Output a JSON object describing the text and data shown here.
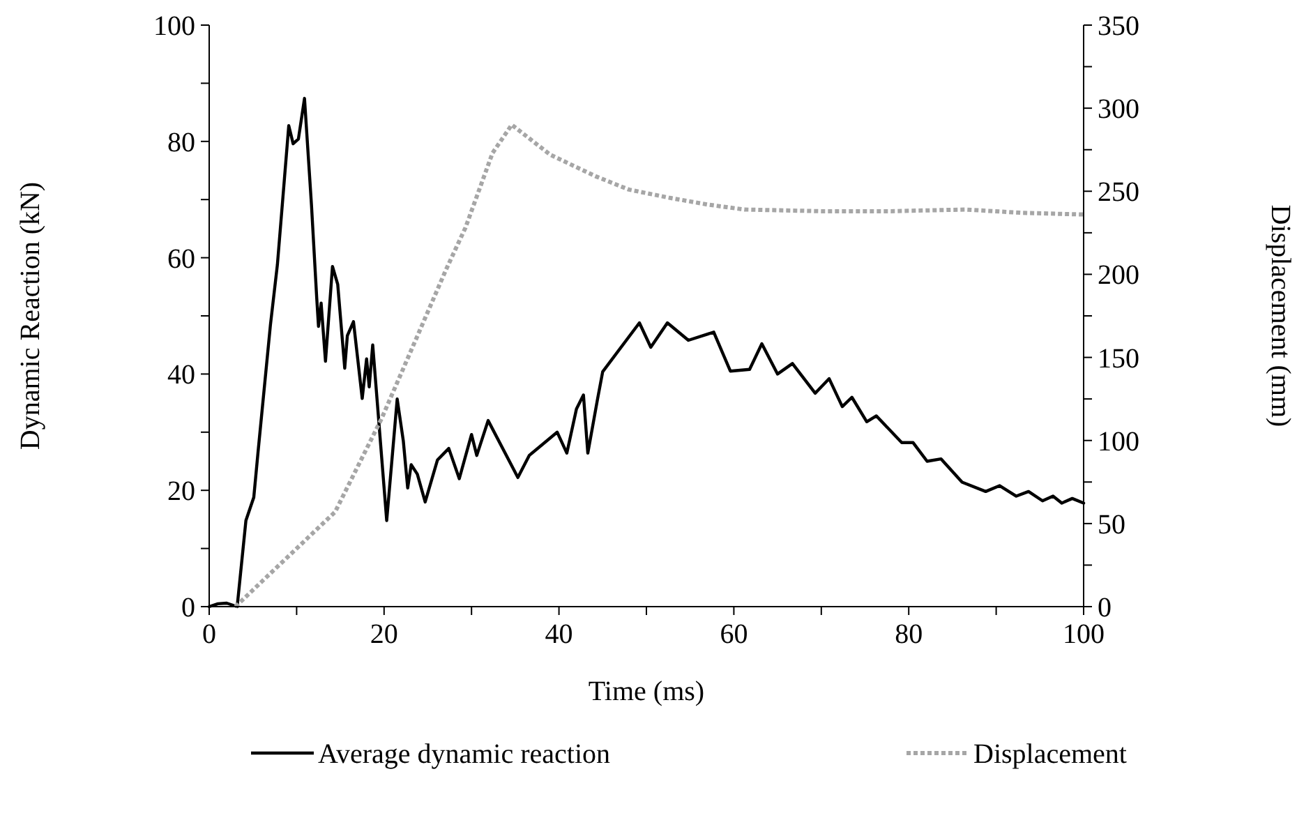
{
  "chart_data": {
    "type": "line",
    "xlabel": "Time (ms)",
    "ylabel": "Dynamic Reaction (kN)",
    "y2label": "Displacement (mm)",
    "xlim": [
      0,
      100
    ],
    "xticks": [
      0,
      {
        "value": 10,
        "label": null
      },
      20,
      {
        "value": 30,
        "label": null
      },
      40,
      {
        "value": 50,
        "label": null
      },
      60,
      {
        "value": 70,
        "label": null
      },
      80,
      {
        "value": 90,
        "label": null
      },
      100
    ],
    "ylim": [
      0,
      100
    ],
    "yticks": [
      0,
      {
        "value": 10,
        "label": null
      },
      20,
      {
        "value": 30,
        "label": null
      },
      40,
      {
        "value": 50,
        "label": null
      },
      60,
      {
        "value": 70,
        "label": null
      },
      80,
      {
        "value": 90,
        "label": null
      },
      100
    ],
    "y2lim": [
      0,
      350
    ],
    "y2ticks": [
      0,
      {
        "value": 25,
        "label": null
      },
      50,
      {
        "value": 75,
        "label": null
      },
      100,
      {
        "value": 125,
        "label": null
      },
      150,
      {
        "value": 175,
        "label": null
      },
      200,
      {
        "value": 225,
        "label": null
      },
      250,
      {
        "value": 275,
        "label": null
      },
      300,
      {
        "value": 325,
        "label": null
      },
      350
    ],
    "grid": false,
    "legend": "bottom",
    "series": [
      {
        "name": "Average dynamic reaction",
        "color": "#000000",
        "line_style": "solid",
        "x": [
          0,
          1,
          2,
          3.2,
          4.2,
          5.1,
          5.6,
          7,
          7.8,
          9.1,
          9.6,
          10.2,
          10.9,
          11.7,
          12.3,
          12.5,
          12.8,
          13.3,
          14.1,
          14.7,
          15.5,
          15.8,
          16.5,
          17.5,
          18,
          18.3,
          18.7,
          20.3,
          21.5,
          22.2,
          22.7,
          23.1,
          23.8,
          24.7,
          26.1,
          27.4,
          28.6,
          30,
          30.6,
          31.9,
          35.3,
          36.6,
          39.8,
          40.9,
          42,
          42.8,
          43.3,
          44.4,
          45,
          49.2,
          50.5,
          52.4,
          54.8,
          57.7,
          59.6,
          61.8,
          63.2,
          65,
          66.7,
          69.3,
          70.9,
          72.4,
          73.5,
          75.2,
          76.3,
          79.2,
          80.5,
          82.1,
          83.7,
          86.1,
          88.8,
          90.4,
          92.3,
          93.7,
          95.3,
          96.5,
          97.5,
          98.7,
          100
        ],
        "values": [
          0,
          0.5,
          0.6,
          0,
          14.8,
          18.8,
          26.8,
          48.4,
          58.8,
          82.7,
          79.6,
          80.4,
          87.4,
          69,
          53,
          48.2,
          52.2,
          42.2,
          58.5,
          55.4,
          41,
          46.6,
          49,
          35.8,
          42.6,
          37.8,
          45,
          14.8,
          35.7,
          28.5,
          20.4,
          24.4,
          22.8,
          18,
          25.2,
          27.2,
          22,
          29.6,
          26,
          32,
          22.2,
          26,
          30,
          26.4,
          34,
          36.4,
          26.4,
          35.6,
          40.4,
          48.8,
          44.6,
          48.8,
          45.8,
          47.2,
          40.5,
          40.8,
          45.2,
          40,
          41.8,
          36.7,
          39.2,
          34.4,
          36,
          31.8,
          32.8,
          28.2,
          28.2,
          25,
          25.4,
          21.4,
          19.8,
          20.8,
          19,
          19.8,
          18.2,
          19,
          17.8,
          18.6,
          17.8
        ]
      },
      {
        "name": "Displacement",
        "color": "#a6a6a6",
        "line_style": "dotted",
        "axis": "y2",
        "x": [
          3,
          10.6,
          14.4,
          19.7,
          23.9,
          27.1,
          29.3,
          32.4,
          34.6,
          39,
          44.2,
          48,
          52.7,
          57,
          61.2,
          70,
          78,
          86.5,
          93,
          100
        ],
        "values": [
          0,
          38,
          57,
          113,
          164,
          203,
          228,
          273,
          290,
          272,
          259,
          251,
          246,
          242,
          239,
          238,
          238,
          239,
          237,
          236
        ]
      }
    ]
  }
}
